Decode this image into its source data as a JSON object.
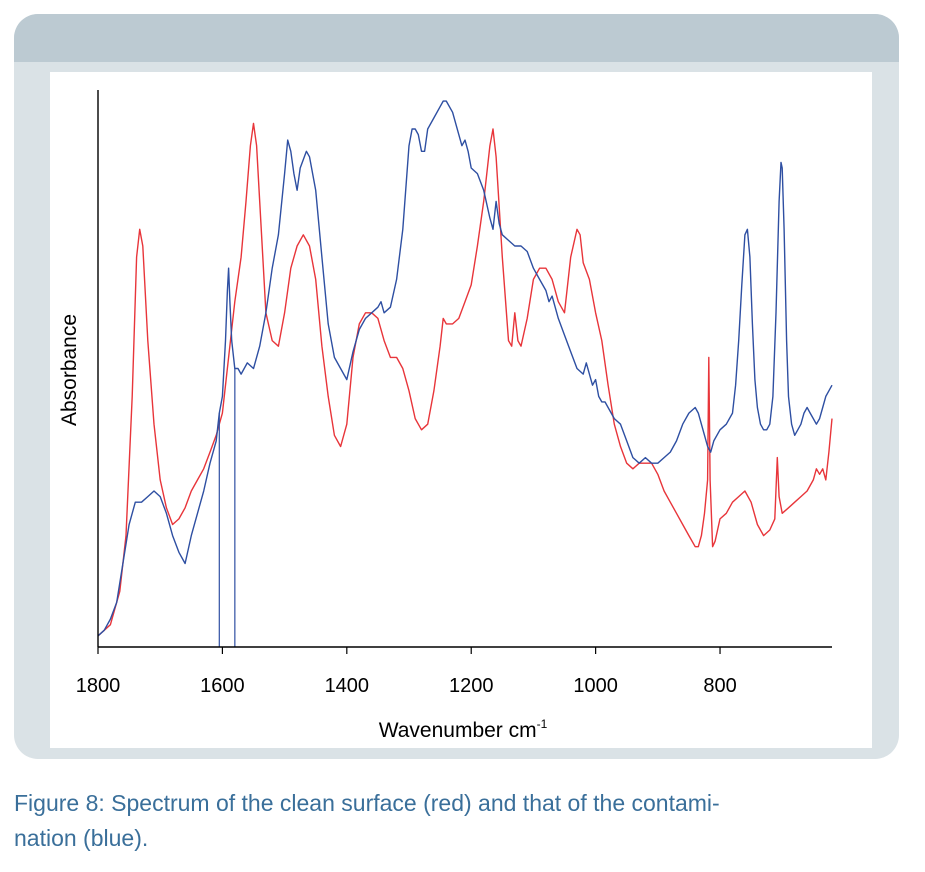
{
  "chart_data": {
    "type": "line",
    "xlabel": "Wavenumber cm",
    "xlabel_sup": "-1",
    "ylabel": "Absorbance",
    "x_reversed": true,
    "xlim": [
      1800,
      620
    ],
    "ylim": [
      0,
      100
    ],
    "x_ticks": [
      1800,
      1600,
      1400,
      1200,
      1000,
      800
    ],
    "series": [
      {
        "color": "#e8353a",
        "points": [
          [
            1800,
            2
          ],
          [
            1780,
            4
          ],
          [
            1765,
            10
          ],
          [
            1755,
            20
          ],
          [
            1745,
            45
          ],
          [
            1738,
            70
          ],
          [
            1733,
            75
          ],
          [
            1728,
            72
          ],
          [
            1720,
            55
          ],
          [
            1710,
            40
          ],
          [
            1700,
            30
          ],
          [
            1690,
            25
          ],
          [
            1680,
            22
          ],
          [
            1670,
            23
          ],
          [
            1660,
            25
          ],
          [
            1650,
            28
          ],
          [
            1640,
            30
          ],
          [
            1630,
            32
          ],
          [
            1620,
            35
          ],
          [
            1610,
            38
          ],
          [
            1600,
            42
          ],
          [
            1590,
            52
          ],
          [
            1580,
            62
          ],
          [
            1570,
            70
          ],
          [
            1562,
            80
          ],
          [
            1555,
            90
          ],
          [
            1550,
            94
          ],
          [
            1545,
            90
          ],
          [
            1540,
            80
          ],
          [
            1530,
            60
          ],
          [
            1520,
            55
          ],
          [
            1510,
            54
          ],
          [
            1500,
            60
          ],
          [
            1490,
            68
          ],
          [
            1480,
            72
          ],
          [
            1470,
            74
          ],
          [
            1460,
            72
          ],
          [
            1450,
            66
          ],
          [
            1440,
            54
          ],
          [
            1430,
            45
          ],
          [
            1420,
            38
          ],
          [
            1410,
            36
          ],
          [
            1400,
            40
          ],
          [
            1390,
            52
          ],
          [
            1380,
            58
          ],
          [
            1370,
            60
          ],
          [
            1360,
            60
          ],
          [
            1350,
            59
          ],
          [
            1340,
            55
          ],
          [
            1330,
            52
          ],
          [
            1320,
            52
          ],
          [
            1310,
            50
          ],
          [
            1300,
            46
          ],
          [
            1290,
            41
          ],
          [
            1280,
            39
          ],
          [
            1270,
            40
          ],
          [
            1260,
            46
          ],
          [
            1250,
            54
          ],
          [
            1245,
            59
          ],
          [
            1240,
            58
          ],
          [
            1230,
            58
          ],
          [
            1220,
            59
          ],
          [
            1210,
            62
          ],
          [
            1200,
            65
          ],
          [
            1190,
            72
          ],
          [
            1180,
            80
          ],
          [
            1170,
            90
          ],
          [
            1165,
            93
          ],
          [
            1160,
            88
          ],
          [
            1150,
            70
          ],
          [
            1140,
            55
          ],
          [
            1135,
            54
          ],
          [
            1130,
            60
          ],
          [
            1125,
            55
          ],
          [
            1120,
            54
          ],
          [
            1110,
            59
          ],
          [
            1100,
            66
          ],
          [
            1090,
            68
          ],
          [
            1080,
            68
          ],
          [
            1070,
            66
          ],
          [
            1060,
            62
          ],
          [
            1050,
            60
          ],
          [
            1040,
            70
          ],
          [
            1030,
            75
          ],
          [
            1025,
            74
          ],
          [
            1020,
            69
          ],
          [
            1010,
            66
          ],
          [
            1000,
            60
          ],
          [
            990,
            55
          ],
          [
            980,
            47
          ],
          [
            970,
            40
          ],
          [
            960,
            36
          ],
          [
            950,
            33
          ],
          [
            940,
            32
          ],
          [
            930,
            33
          ],
          [
            920,
            33
          ],
          [
            910,
            33
          ],
          [
            900,
            31
          ],
          [
            890,
            28
          ],
          [
            880,
            26
          ],
          [
            870,
            24
          ],
          [
            860,
            22
          ],
          [
            850,
            20
          ],
          [
            840,
            18
          ],
          [
            835,
            18
          ],
          [
            830,
            20
          ],
          [
            825,
            24
          ],
          [
            820,
            30
          ],
          [
            818,
            52
          ],
          [
            816,
            30
          ],
          [
            812,
            18
          ],
          [
            808,
            19
          ],
          [
            800,
            23
          ],
          [
            790,
            24
          ],
          [
            780,
            26
          ],
          [
            770,
            27
          ],
          [
            760,
            28
          ],
          [
            750,
            26
          ],
          [
            740,
            22
          ],
          [
            730,
            20
          ],
          [
            720,
            21
          ],
          [
            712,
            23
          ],
          [
            708,
            34
          ],
          [
            705,
            27
          ],
          [
            700,
            24
          ],
          [
            690,
            25
          ],
          [
            680,
            26
          ],
          [
            670,
            27
          ],
          [
            660,
            28
          ],
          [
            650,
            30
          ],
          [
            645,
            32
          ],
          [
            640,
            31
          ],
          [
            635,
            32
          ],
          [
            630,
            30
          ],
          [
            625,
            35
          ],
          [
            620,
            41
          ]
        ]
      },
      {
        "color": "#2e4fa2",
        "points": [
          [
            1800,
            2
          ],
          [
            1790,
            3
          ],
          [
            1780,
            5
          ],
          [
            1770,
            8
          ],
          [
            1760,
            15
          ],
          [
            1750,
            22
          ],
          [
            1740,
            26
          ],
          [
            1730,
            26
          ],
          [
            1720,
            27
          ],
          [
            1710,
            28
          ],
          [
            1700,
            27
          ],
          [
            1690,
            24
          ],
          [
            1680,
            20
          ],
          [
            1670,
            17
          ],
          [
            1665,
            16
          ],
          [
            1660,
            15
          ],
          [
            1650,
            20
          ],
          [
            1640,
            24
          ],
          [
            1630,
            28
          ],
          [
            1620,
            33
          ],
          [
            1610,
            37
          ],
          [
            1605,
            42
          ],
          [
            1600,
            45
          ],
          [
            1595,
            55
          ],
          [
            1592,
            64
          ],
          [
            1590,
            68
          ],
          [
            1588,
            62
          ],
          [
            1585,
            55
          ],
          [
            1580,
            50
          ],
          [
            1575,
            50
          ],
          [
            1570,
            49
          ],
          [
            1560,
            51
          ],
          [
            1550,
            50
          ],
          [
            1540,
            54
          ],
          [
            1530,
            60
          ],
          [
            1520,
            68
          ],
          [
            1510,
            74
          ],
          [
            1500,
            85
          ],
          [
            1495,
            91
          ],
          [
            1490,
            89
          ],
          [
            1485,
            85
          ],
          [
            1480,
            82
          ],
          [
            1475,
            86
          ],
          [
            1465,
            89
          ],
          [
            1460,
            88
          ],
          [
            1450,
            82
          ],
          [
            1440,
            70
          ],
          [
            1430,
            58
          ],
          [
            1420,
            52
          ],
          [
            1410,
            50
          ],
          [
            1400,
            48
          ],
          [
            1390,
            53
          ],
          [
            1380,
            57
          ],
          [
            1370,
            59
          ],
          [
            1360,
            60
          ],
          [
            1350,
            61
          ],
          [
            1345,
            62
          ],
          [
            1340,
            60
          ],
          [
            1330,
            61
          ],
          [
            1320,
            66
          ],
          [
            1310,
            75
          ],
          [
            1300,
            90
          ],
          [
            1295,
            93
          ],
          [
            1290,
            93
          ],
          [
            1285,
            92
          ],
          [
            1280,
            89
          ],
          [
            1275,
            89
          ],
          [
            1270,
            93
          ],
          [
            1260,
            95
          ],
          [
            1250,
            97
          ],
          [
            1245,
            98
          ],
          [
            1240,
            98
          ],
          [
            1230,
            96
          ],
          [
            1220,
            92
          ],
          [
            1215,
            90
          ],
          [
            1210,
            91
          ],
          [
            1205,
            89
          ],
          [
            1200,
            86
          ],
          [
            1190,
            85
          ],
          [
            1180,
            82
          ],
          [
            1170,
            77
          ],
          [
            1165,
            75
          ],
          [
            1160,
            80
          ],
          [
            1155,
            76
          ],
          [
            1150,
            74
          ],
          [
            1140,
            73
          ],
          [
            1130,
            72
          ],
          [
            1120,
            72
          ],
          [
            1110,
            71
          ],
          [
            1100,
            68
          ],
          [
            1090,
            66
          ],
          [
            1080,
            64
          ],
          [
            1075,
            62
          ],
          [
            1070,
            63
          ],
          [
            1060,
            59
          ],
          [
            1050,
            56
          ],
          [
            1040,
            53
          ],
          [
            1030,
            50
          ],
          [
            1020,
            49
          ],
          [
            1015,
            51
          ],
          [
            1010,
            49
          ],
          [
            1005,
            47
          ],
          [
            1000,
            48
          ],
          [
            995,
            45
          ],
          [
            990,
            44
          ],
          [
            985,
            44
          ],
          [
            980,
            43
          ],
          [
            970,
            41
          ],
          [
            960,
            40
          ],
          [
            950,
            37
          ],
          [
            940,
            34
          ],
          [
            930,
            33
          ],
          [
            920,
            34
          ],
          [
            910,
            33
          ],
          [
            900,
            33
          ],
          [
            890,
            34
          ],
          [
            880,
            35
          ],
          [
            870,
            37
          ],
          [
            860,
            40
          ],
          [
            850,
            42
          ],
          [
            840,
            43
          ],
          [
            835,
            42
          ],
          [
            830,
            40
          ],
          [
            825,
            38
          ],
          [
            820,
            36
          ],
          [
            815,
            35
          ],
          [
            810,
            37
          ],
          [
            800,
            39
          ],
          [
            790,
            40
          ],
          [
            780,
            42
          ],
          [
            775,
            47
          ],
          [
            770,
            55
          ],
          [
            765,
            65
          ],
          [
            760,
            74
          ],
          [
            756,
            75
          ],
          [
            752,
            70
          ],
          [
            748,
            58
          ],
          [
            744,
            48
          ],
          [
            740,
            43
          ],
          [
            735,
            40
          ],
          [
            730,
            39
          ],
          [
            725,
            39
          ],
          [
            720,
            40
          ],
          [
            715,
            45
          ],
          [
            710,
            60
          ],
          [
            705,
            80
          ],
          [
            702,
            87
          ],
          [
            700,
            86
          ],
          [
            697,
            75
          ],
          [
            693,
            55
          ],
          [
            690,
            45
          ],
          [
            685,
            40
          ],
          [
            680,
            38
          ],
          [
            675,
            39
          ],
          [
            670,
            40
          ],
          [
            665,
            42
          ],
          [
            660,
            43
          ],
          [
            655,
            42
          ],
          [
            650,
            41
          ],
          [
            645,
            40
          ],
          [
            640,
            41
          ],
          [
            635,
            43
          ],
          [
            630,
            45
          ],
          [
            625,
            46
          ],
          [
            620,
            47
          ]
        ]
      }
    ]
  },
  "caption": {
    "line1": "Figure 8: Spectrum of the clean surface (red) and that of the contami-",
    "line2": "nation (blue)."
  }
}
